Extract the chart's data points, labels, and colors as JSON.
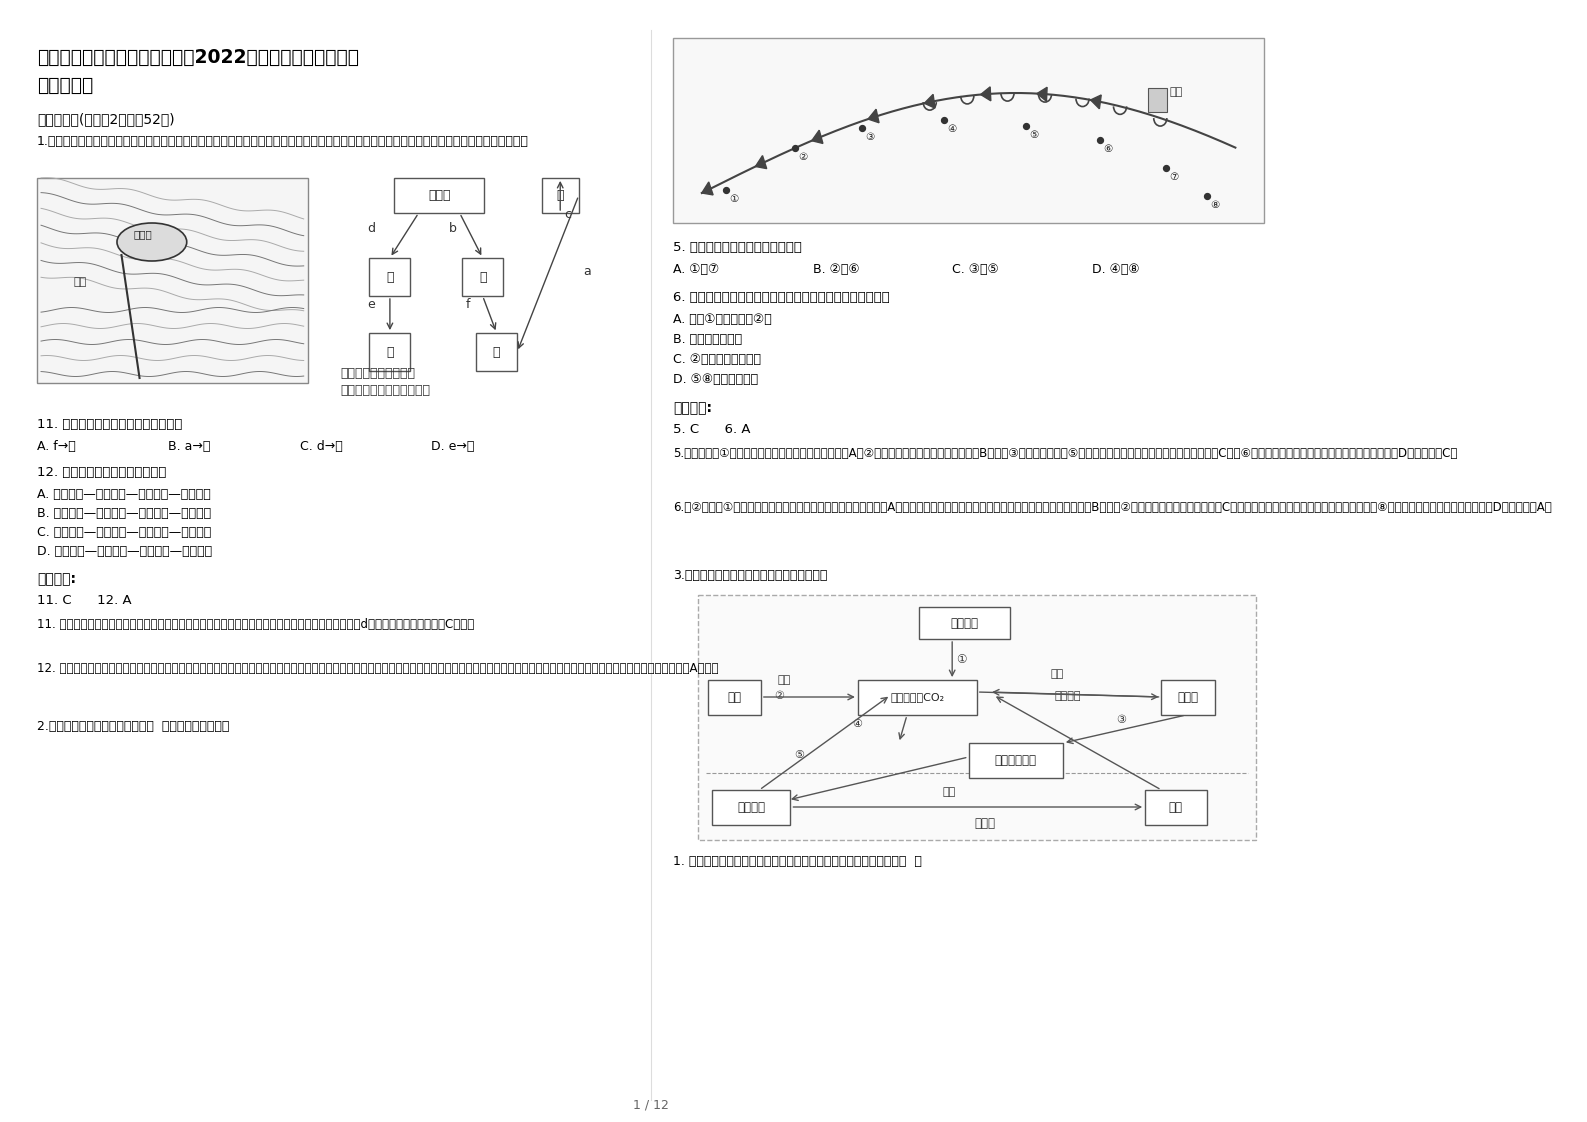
{
  "title_line1": "河北省石家庄市孙庄乡孙庄中学2022年高二地理上学期期末",
  "title_line2": "试题含解析",
  "page_bg": "#ffffff",
  "text_color": "#000000",
  "section1": "一、选择题(每小题2分，共52分)",
  "q1_intro": "1.推覆构造通常是上盘岩层自远处推移而来，上覆于相对停留在原地不动的岩块之上而形成的一种地质构造。读某推覆构造示意图，回答下面小题。",
  "q11": "11. 图中表示飞来峰岩石形成过程的是",
  "q11_a": "A. f→甲",
  "q11_b": "B. a→丙",
  "q11_c": "C. d→丁",
  "q11_d": "D. e→戊",
  "q12": "12. 飞来峰景观形成过程正确的是",
  "q12_a": "A. 水平挤压—岩层断裂—推移上覆—外力侵蚀",
  "q12_b": "B. 垂直上升—岩层断裂—水平挤压—推移上覆",
  "q12_c": "C. 岩层断裂—水平挤压—推移上覆—外力沉积",
  "q12_d": "D. 岩层断裂—垂直上升—外力侵蚀—推移上覆",
  "ans_label1": "参考答案:",
  "ans1": "11. C      12. A",
  "ans1_exp11": "11. 甲图中构成飞来峰的岩层水平分布，层理构造清晰，应为沉积岩。乙图中由沉积物在外力作用（即d）下形成的岩层为丁。故C正确。",
  "ans1_exp12": "12. 此地质过程为受水平挤压作用，导致岩层出现断层，断层一侧的岩块位置发生移动，位于另一侧岩层之上，后受外力侵蚀作用，上覆岩层遭受侵蚀，致使上覆岩层不再成为连续的整体岩层，形成推覆构造。A正确。",
  "q2_intro": "2.下图为北半球某天气系统示意图  读图完成下列小题。",
  "q5": "5. 图中完全受冷气团控制的地点有",
  "q5_a": "A. ①和⑦",
  "q5_b": "B. ②和⑥",
  "q5_c": "C. ③和⑤",
  "q5_d": "D. ④和⑧",
  "q6": "6. 对图示天气系统影响下各地点大气状况的描述，正确的是",
  "q6_a": "A. 白天①地气温大于②地",
  "q6_b": "B. 城市天气正晴朗",
  "q6_c": "C. ②地气温未来会升高",
  "q6_d": "D. ⑤⑧两地连续降水",
  "ans_label2": "参考答案:",
  "ans2": "5. C      6. A",
  "ans2_exp5": "5.据据图示，①在暖气团一侧，不受冷气团控制，排除A；②位于锋面附近，受两个气团影响，B不对；③位于锋面下方，⑤位于冷锋锋面符号之后，完全受冷气团控制，C对；⑥位于暖锋锋面符号之后，完全受到暖气团控制，D不对。故选C。",
  "ans2_exp6": "6.和②比较，①天气晴朗，受太阳辐射影响强烈，白天气温较高，A对；图中看，城市位于气旋中心，盛行上升气流，多阴雨天气，B不对；②处受冷锋影响，气温会下降，C不对；锋面的降水主要发生在冷气团一侧，因此⑧地在暖气团一侧，此时没有降水，D不对。故选A。",
  "q3_intro": "3.下图为碳循环示意图，读图回答以下各题。",
  "q3_q1": "1. 大力开发风能资源，减少二氧化碳排放，直接影响图中的环节是（  ）",
  "page_num": "1 / 12",
  "border_color": "#cccccc",
  "diagram_box_color": "#f0f0f0"
}
